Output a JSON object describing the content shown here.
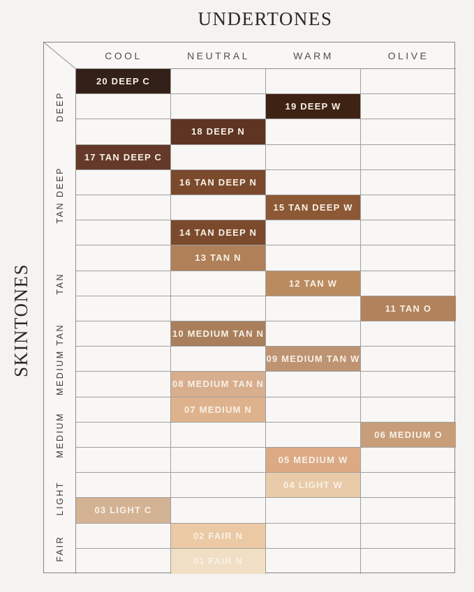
{
  "chart_data": {
    "type": "table",
    "title": "UNDERTONES",
    "row_axis_label": "SKINTONES",
    "columns": [
      "COOL",
      "NEUTRAL",
      "WARM",
      "OLIVE"
    ],
    "row_groups": [
      {
        "label": "DEEP",
        "span": 3
      },
      {
        "label": "TAN DEEP",
        "span": 4
      },
      {
        "label": "TAN",
        "span": 3
      },
      {
        "label": "MEDIUM TAN",
        "span": 3
      },
      {
        "label": "MEDIUM",
        "span": 3
      },
      {
        "label": "LIGHT",
        "span": 2
      },
      {
        "label": "FAIR",
        "span": 2
      }
    ],
    "grid_rows": 20,
    "shades": [
      {
        "row": 0,
        "col": 0,
        "column": "COOL",
        "group": "DEEP",
        "label": "20 DEEP C",
        "color": "#332018"
      },
      {
        "row": 1,
        "col": 2,
        "column": "WARM",
        "group": "DEEP",
        "label": "19 DEEP W",
        "color": "#3e2315"
      },
      {
        "row": 2,
        "col": 1,
        "column": "NEUTRAL",
        "group": "DEEP",
        "label": "18 DEEP N",
        "color": "#5e3423"
      },
      {
        "row": 3,
        "col": 0,
        "column": "COOL",
        "group": "TAN DEEP",
        "label": "17 TAN DEEP C",
        "color": "#643929"
      },
      {
        "row": 4,
        "col": 1,
        "column": "NEUTRAL",
        "group": "TAN DEEP",
        "label": "16 TAN DEEP N",
        "color": "#7b4a2d"
      },
      {
        "row": 5,
        "col": 2,
        "column": "WARM",
        "group": "TAN DEEP",
        "label": "15 TAN DEEP W",
        "color": "#8c5835"
      },
      {
        "row": 6,
        "col": 1,
        "column": "NEUTRAL",
        "group": "TAN DEEP",
        "label": "14 TAN DEEP N",
        "color": "#7b4a2d"
      },
      {
        "row": 7,
        "col": 1,
        "column": "NEUTRAL",
        "group": "TAN",
        "label": "13 TAN N",
        "color": "#b08058"
      },
      {
        "row": 8,
        "col": 2,
        "column": "WARM",
        "group": "TAN",
        "label": "12 TAN W",
        "color": "#bb8b60"
      },
      {
        "row": 9,
        "col": 3,
        "column": "OLIVE",
        "group": "TAN",
        "label": "11 TAN O",
        "color": "#b2825c"
      },
      {
        "row": 10,
        "col": 1,
        "column": "NEUTRAL",
        "group": "MEDIUM TAN",
        "label": "10 MEDIUM TAN N",
        "color": "#a97f5c"
      },
      {
        "row": 11,
        "col": 2,
        "column": "WARM",
        "group": "MEDIUM TAN",
        "label": "09 MEDIUM TAN W",
        "color": "#bd9372"
      },
      {
        "row": 12,
        "col": 1,
        "column": "NEUTRAL",
        "group": "MEDIUM TAN",
        "label": "08 MEDIUM TAN N",
        "color": "#d7ae8e"
      },
      {
        "row": 13,
        "col": 1,
        "column": "NEUTRAL",
        "group": "MEDIUM",
        "label": "07 MEDIUM N",
        "color": "#deb28c"
      },
      {
        "row": 14,
        "col": 3,
        "column": "OLIVE",
        "group": "MEDIUM",
        "label": "06 MEDIUM O",
        "color": "#c79d7a"
      },
      {
        "row": 15,
        "col": 2,
        "column": "WARM",
        "group": "MEDIUM",
        "label": "05 MEDIUM W",
        "color": "#dca985"
      },
      {
        "row": 16,
        "col": 2,
        "column": "WARM",
        "group": "LIGHT",
        "label": "04 LIGHT W",
        "color": "#e9cba9"
      },
      {
        "row": 17,
        "col": 0,
        "column": "COOL",
        "group": "LIGHT",
        "label": "03 LIGHT C",
        "color": "#d3b394"
      },
      {
        "row": 18,
        "col": 1,
        "column": "NEUTRAL",
        "group": "FAIR",
        "label": "02 FAIR N",
        "color": "#eac9a4"
      },
      {
        "row": 19,
        "col": 1,
        "column": "NEUTRAL",
        "group": "FAIR",
        "label": "01 FAIR N",
        "color": "#f1dfc5"
      }
    ],
    "colors": {
      "page_background": "#f4f3f1",
      "cell_background": "#f8f7f5",
      "grid_line": "#a09e9c",
      "outer_border": "#85837f",
      "swatch_text": "#f8f1e6",
      "header_text": "#504e4c",
      "title_text": "#2b2928"
    },
    "legend_position": "none",
    "grid": true
  }
}
